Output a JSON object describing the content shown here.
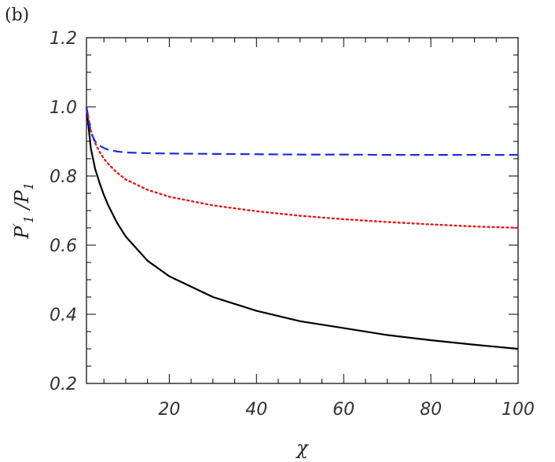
{
  "chart_data": {
    "type": "line",
    "panel_label": "(b)",
    "xlabel": "χ",
    "ylabel": {
      "text": "P",
      "prime": "′",
      "sub1": "1",
      "slash": " /P",
      "sub2": "1"
    },
    "xlim": [
      1,
      100
    ],
    "ylim": [
      0.2,
      1.2
    ],
    "x_ticks": [
      20,
      40,
      60,
      80,
      100
    ],
    "x_tick_labels": [
      "20",
      "40",
      "60",
      "80",
      "100"
    ],
    "y_ticks": [
      0.2,
      0.4,
      0.6,
      0.8,
      1.0,
      1.2
    ],
    "y_tick_labels": [
      "0.2",
      "0.4",
      "0.6",
      "0.8",
      "1.0",
      "1.2"
    ],
    "grid": false,
    "series": [
      {
        "style": "solid",
        "color": "#000000",
        "x": [
          1,
          2,
          3,
          4,
          5,
          6,
          8,
          10,
          15,
          20,
          30,
          40,
          50,
          60,
          70,
          80,
          90,
          100
        ],
        "y": [
          1.0,
          0.88,
          0.82,
          0.78,
          0.745,
          0.715,
          0.665,
          0.625,
          0.555,
          0.51,
          0.45,
          0.41,
          0.38,
          0.36,
          0.34,
          0.325,
          0.312,
          0.3
        ]
      },
      {
        "style": "dotted",
        "color": "#e41a1c",
        "x": [
          1,
          2,
          3,
          4,
          5,
          6,
          8,
          10,
          15,
          20,
          30,
          40,
          50,
          60,
          70,
          80,
          90,
          100
        ],
        "y": [
          1.0,
          0.93,
          0.895,
          0.87,
          0.85,
          0.835,
          0.81,
          0.79,
          0.76,
          0.74,
          0.715,
          0.698,
          0.685,
          0.675,
          0.667,
          0.66,
          0.654,
          0.65
        ]
      },
      {
        "style": "dashed",
        "color": "#1f2fd8",
        "x": [
          1,
          2,
          3,
          4,
          5,
          6,
          8,
          10,
          15,
          20,
          30,
          40,
          50,
          60,
          70,
          80,
          90,
          100
        ],
        "y": [
          1.0,
          0.925,
          0.9,
          0.888,
          0.881,
          0.876,
          0.871,
          0.868,
          0.866,
          0.865,
          0.864,
          0.863,
          0.862,
          0.862,
          0.861,
          0.861,
          0.861,
          0.861
        ]
      }
    ]
  }
}
